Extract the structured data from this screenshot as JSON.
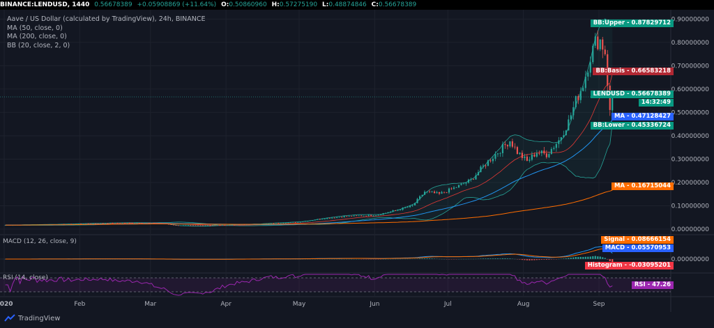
{
  "header": {
    "symbol": "BINANCE:LENDUSD, 1440",
    "last": "0.56678389",
    "change": "+0.05908869 (+11.64%)",
    "o_label": "O:",
    "o": "0.50860960",
    "h_label": "H:",
    "h": "0.57275190",
    "l_label": "L:",
    "l": "0.48874846",
    "c_label": "C:",
    "c": "0.56678389"
  },
  "legend": {
    "title": "Aave / US Dollar (calculated by TradingView), 24h, BINANCE",
    "ma50": "MA (50, close, 0)",
    "ma200": "MA (200, close, 0)",
    "bb": "BB (20, close, 2, 0)"
  },
  "macd_label": "MACD (12, 26, close, 9)",
  "rsi_label": "RSI (14, close)",
  "footer": {
    "brand": "TradingView"
  },
  "tags": {
    "bb_upper": "BB:Upper - 0.87829712",
    "bb_basis": "BB:Basis - 0.66583218",
    "last": "LENDUSD - 0.56678389",
    "countdown": "14:32:49",
    "ma50": "MA - 0.47128427",
    "bb_lower": "BB:Lower - 0.45336724",
    "ma200": "MA - 0.16715044",
    "signal": "Signal - 0.08666154",
    "macd": "MACD - 0.05570953",
    "histogram": "Histogram - -0.03095201",
    "rsi": "RSI - 47.26"
  },
  "colors": {
    "background": "#131722",
    "up": "#26a69a",
    "down": "#ef5350",
    "ma50": "#2196f3",
    "ma200": "#ff6d00",
    "bb_basis": "#e53935",
    "bb_band": "#26a69a",
    "signal": "#ff6d00",
    "macd": "#2196f3",
    "rsi": "#9c27b0",
    "last_tag": "#089981",
    "bb_upper_tag": "#089981",
    "bb_basis_tag": "#b22833",
    "ma50_tag": "#2962ff",
    "ma200_tag": "#ff6d00",
    "histogram_tag": "#f23645",
    "rsi_tag": "#9c27b0"
  },
  "chart_data": {
    "type": "candlestick",
    "price_axis": {
      "ticks": [
        "0.90000000",
        "0.80000000",
        "0.70000000",
        "0.60000000",
        "0.50000000",
        "0.40000000",
        "0.30000000",
        "0.20000000",
        "0.10000000",
        "0.00000000"
      ],
      "values": [
        0.9,
        0.8,
        0.7,
        0.6,
        0.5,
        0.4,
        0.3,
        0.2,
        0.1,
        0.0
      ],
      "ylim": [
        -0.015,
        0.94
      ]
    },
    "macd_axis": {
      "ticks": [
        "0.00000000"
      ],
      "values": [
        0
      ]
    },
    "rsi_levels": [
      70,
      30
    ],
    "time_axis": [
      "2020",
      "Feb",
      "Mar",
      "Apr",
      "May",
      "Jun",
      "Jul",
      "Aug",
      "Sep"
    ],
    "time_axis_days": [
      0,
      31,
      60,
      91,
      121,
      152,
      182,
      213,
      244
    ],
    "total_days": 250,
    "ohlc_close_checkpoints": [
      [
        0,
        0.017
      ],
      [
        20,
        0.02
      ],
      [
        40,
        0.025
      ],
      [
        55,
        0.027
      ],
      [
        66,
        0.022
      ],
      [
        70,
        0.016
      ],
      [
        85,
        0.016
      ],
      [
        100,
        0.02
      ],
      [
        120,
        0.03
      ],
      [
        130,
        0.045
      ],
      [
        140,
        0.055
      ],
      [
        152,
        0.06
      ],
      [
        160,
        0.08
      ],
      [
        167,
        0.1
      ],
      [
        172,
        0.16
      ],
      [
        178,
        0.15
      ],
      [
        185,
        0.18
      ],
      [
        191,
        0.21
      ],
      [
        197,
        0.28
      ],
      [
        203,
        0.34
      ],
      [
        207,
        0.38
      ],
      [
        210,
        0.33
      ],
      [
        214,
        0.29
      ],
      [
        218,
        0.33
      ],
      [
        222,
        0.32
      ],
      [
        227,
        0.38
      ],
      [
        231,
        0.46
      ],
      [
        234,
        0.55
      ],
      [
        237,
        0.62
      ],
      [
        240,
        0.74
      ],
      [
        242,
        0.8
      ],
      [
        244,
        0.81
      ],
      [
        246,
        0.76
      ],
      [
        248,
        0.5
      ],
      [
        249,
        0.567
      ]
    ],
    "last_candle": {
      "open": 0.5086096,
      "high": 0.5727519,
      "low": 0.48874846,
      "close": 0.56678389
    },
    "ma50_last": 0.47128427,
    "ma200_last": 0.16715044,
    "bb_upper_last": 0.87829712,
    "bb_basis_last": 0.66583218,
    "bb_lower_last": 0.45336724,
    "macd_last": 0.05570953,
    "signal_last": 0.08666154,
    "histogram_last": -0.03095201,
    "rsi_last": 47.26
  }
}
